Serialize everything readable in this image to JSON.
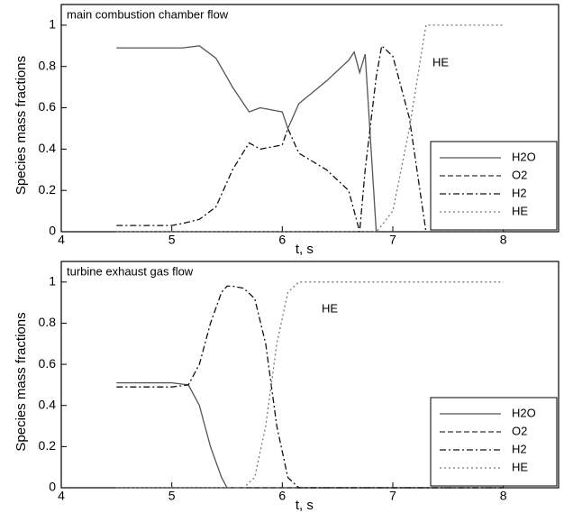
{
  "chart_data": [
    {
      "type": "line",
      "title": "main combustion chamber flow",
      "x_label": "t, s",
      "y_label": "Species mass fractions",
      "xlim": [
        4,
        8.5
      ],
      "ylim": [
        0,
        1.1
      ],
      "xticks": [
        4,
        5,
        6,
        7,
        8
      ],
      "yticks": [
        0,
        0.2,
        0.4,
        0.6,
        0.8,
        1
      ],
      "legend": "lower right",
      "annotations": [
        {
          "text": "HE"
        }
      ],
      "x": [
        4.5,
        5.0,
        5.1,
        5.25,
        5.4,
        5.55,
        5.7,
        5.8,
        6.0,
        6.05,
        6.15,
        6.4,
        6.6,
        6.65,
        6.7,
        6.75,
        6.85,
        6.9,
        7.0,
        7.15,
        7.3,
        7.5,
        8.0
      ],
      "series": [
        {
          "name": "H2O",
          "color": "#555555",
          "style": "solid",
          "values": [
            0.89,
            0.89,
            0.89,
            0.9,
            0.84,
            0.7,
            0.58,
            0.6,
            0.58,
            0.5,
            0.62,
            0.73,
            0.83,
            0.87,
            0.77,
            0.86,
            0,
            null,
            null,
            null,
            null,
            null,
            null
          ]
        },
        {
          "name": "O2",
          "color": "#333333",
          "style": "dashed",
          "values": [
            0,
            0,
            0,
            0,
            0,
            0,
            0,
            0,
            0,
            0,
            0,
            0,
            0,
            0,
            0,
            0,
            0,
            0,
            0,
            0,
            0,
            0,
            0
          ]
        },
        {
          "name": "H2",
          "color": "#111111",
          "style": "dashdot",
          "values": [
            0.03,
            0.03,
            0.04,
            0.06,
            0.12,
            0.3,
            0.43,
            0.4,
            0.42,
            0.5,
            0.38,
            0.3,
            0.2,
            0.1,
            0,
            0.3,
            0.75,
            0.9,
            0.85,
            0.55,
            0,
            null,
            null
          ]
        },
        {
          "name": "HE",
          "color": "#777777",
          "style": "dotted",
          "values": [
            0,
            0,
            0,
            0,
            0,
            0,
            0,
            0,
            0,
            0,
            0,
            0,
            0,
            0,
            0,
            0,
            0,
            0.03,
            0.1,
            0.5,
            1,
            1,
            1
          ]
        }
      ]
    },
    {
      "type": "line",
      "title": "turbine exhaust gas flow",
      "x_label": "t, s",
      "y_label": "Species mass fractions",
      "xlim": [
        4,
        8.5
      ],
      "ylim": [
        0,
        1.1
      ],
      "xticks": [
        4,
        5,
        6,
        7,
        8
      ],
      "yticks": [
        0,
        0.2,
        0.4,
        0.6,
        0.8,
        1
      ],
      "legend": "lower right",
      "annotations": [
        {
          "text": "HE"
        }
      ],
      "x": [
        4.5,
        5.0,
        5.15,
        5.25,
        5.35,
        5.45,
        5.5,
        5.55,
        5.65,
        5.75,
        5.85,
        5.95,
        6.05,
        6.15,
        6.5,
        7.0,
        8.0
      ],
      "series": [
        {
          "name": "H2O",
          "color": "#555555",
          "style": "solid",
          "values": [
            0.51,
            0.51,
            0.5,
            0.4,
            0.2,
            0.05,
            0,
            0,
            0,
            0,
            0,
            0,
            0,
            0,
            0,
            0,
            0
          ]
        },
        {
          "name": "O2",
          "color": "#333333",
          "style": "dashed",
          "values": [
            0,
            0,
            0,
            0,
            0,
            0,
            0,
            0,
            0,
            0,
            0,
            0,
            0,
            0,
            0,
            0,
            0
          ]
        },
        {
          "name": "H2",
          "color": "#111111",
          "style": "dashdot",
          "values": [
            0.49,
            0.49,
            0.5,
            0.6,
            0.8,
            0.95,
            0.98,
            0.98,
            0.97,
            0.92,
            0.7,
            0.3,
            0.05,
            0,
            0,
            0,
            0
          ]
        },
        {
          "name": "HE",
          "color": "#777777",
          "style": "dotted",
          "values": [
            0,
            0,
            0,
            0,
            0,
            0,
            0,
            0,
            0,
            0.05,
            0.3,
            0.7,
            0.95,
            1,
            1,
            1,
            1
          ]
        }
      ]
    }
  ]
}
